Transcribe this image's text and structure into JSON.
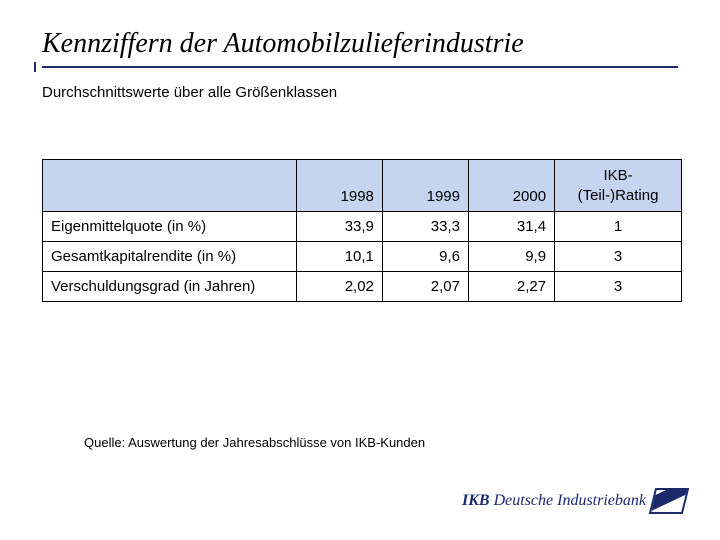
{
  "title": "Kennziffern der Automobilzulieferindustrie",
  "subtitle": "Durchschnittswerte über alle Größenklassen",
  "table": {
    "header_bg": "#c6d5ef",
    "border_color": "#000000",
    "columns": [
      "",
      "1998",
      "1999",
      "2000",
      "IKB-\n(Teil-)Rating"
    ],
    "rows": [
      {
        "label": "Eigenmittelquote (in %)",
        "y1998": "33,9",
        "y1999": "33,3",
        "y2000": "31,4",
        "rating": "1"
      },
      {
        "label": "Gesamtkapitalrendite (in %)",
        "y1998": "10,1",
        "y1999": "9,6",
        "y2000": "9,9",
        "rating": "3"
      },
      {
        "label": "Verschuldungsgrad (in Jahren)",
        "y1998": "2,02",
        "y1999": "2,07",
        "y2000": "2,27",
        "rating": "3"
      }
    ]
  },
  "source": "Quelle: Auswertung der Jahresabschlüsse von IKB-Kunden",
  "logo": {
    "brand": "IKB",
    "name": "Deutsche Industriebank",
    "color": "#1b2a6b"
  }
}
